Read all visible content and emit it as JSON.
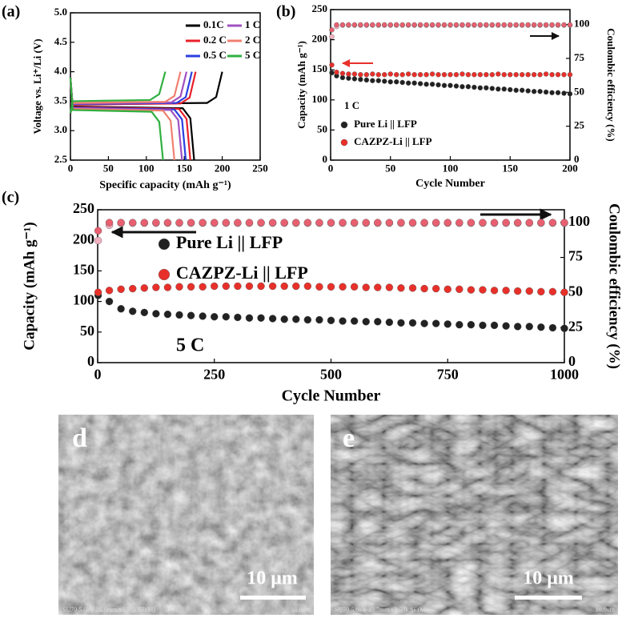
{
  "chart_data": [
    {
      "type": "line",
      "panel": "(a)",
      "xlabel": "Specific capacity (mAh g⁻¹)",
      "ylabel": "Voltage vs. Li⁺/Li (V)",
      "xlim": [
        0,
        250
      ],
      "xticks": [
        0,
        50,
        100,
        150,
        200,
        250
      ],
      "ylim": [
        2.5,
        5
      ],
      "yticks": [
        2.5,
        {
          "value": 3,
          "label": "3.0"
        },
        3.5,
        {
          "value": 4,
          "label": "4.0"
        },
        4.5,
        {
          "value": 5,
          "label": "5.0"
        }
      ],
      "legend": "upper right",
      "legend_columns": 2,
      "series": [
        {
          "name": "0.1C",
          "color": "#000000",
          "x": [
            0,
            3,
            180,
            192,
            200,
            null,
            0,
            3,
            148,
            158,
            163
          ],
          "values": [
            3.3,
            3.45,
            3.47,
            3.57,
            4.0,
            null,
            3.9,
            3.41,
            3.38,
            3.21,
            2.5
          ]
        },
        {
          "name": "0.2 C",
          "color": "#e8202a",
          "x": [
            0,
            3,
            145,
            157,
            165,
            null,
            0,
            3,
            143,
            153,
            158
          ],
          "values": [
            3.3,
            3.44,
            3.46,
            3.56,
            4.0,
            null,
            3.9,
            3.4,
            3.37,
            3.2,
            2.5
          ]
        },
        {
          "name": "0.5 C",
          "color": "#2a3fe0",
          "x": [
            0,
            3,
            140,
            152,
            160,
            null,
            0,
            3,
            137,
            147,
            152
          ],
          "values": [
            3.3,
            3.45,
            3.47,
            3.57,
            4.0,
            null,
            3.9,
            3.39,
            3.36,
            3.19,
            2.5
          ]
        },
        {
          "name": "1 C",
          "color": "#a050c0",
          "x": [
            0,
            3,
            133,
            145,
            153,
            null,
            0,
            3,
            132,
            142,
            147
          ],
          "values": [
            3.3,
            3.46,
            3.48,
            3.58,
            4.0,
            null,
            3.9,
            3.38,
            3.35,
            3.18,
            2.5
          ]
        },
        {
          "name": "2 C",
          "color": "#f08070",
          "x": [
            0,
            3,
            125,
            137,
            145,
            null,
            0,
            3,
            122,
            132,
            137
          ],
          "values": [
            3.3,
            3.47,
            3.49,
            3.59,
            4.0,
            null,
            3.9,
            3.37,
            3.34,
            3.17,
            2.5
          ]
        },
        {
          "name": "5 C",
          "color": "#30b040",
          "x": [
            0,
            3,
            105,
            117,
            125,
            null,
            0,
            3,
            107,
            117,
            122
          ],
          "values": [
            3.3,
            3.5,
            3.52,
            3.62,
            4.0,
            null,
            3.9,
            3.35,
            3.32,
            3.15,
            2.5
          ]
        }
      ]
    },
    {
      "type": "scatter",
      "panel": "(b)",
      "annotation": "1 C",
      "xlabel": "Cycle Number",
      "ylabel": "Capacity (mAh g⁻¹)",
      "y2label": "Coulombic efficiency (%)",
      "xlim": [
        0,
        200
      ],
      "xticks": [
        0,
        50,
        100,
        150,
        200
      ],
      "ylim": [
        0,
        250
      ],
      "yticks": [
        0,
        50,
        100,
        150,
        200,
        250
      ],
      "y2lim": [
        0,
        111
      ],
      "y2ticks": [
        0,
        25,
        50,
        75,
        100
      ],
      "legend": "lower left",
      "x": [
        1,
        5,
        10,
        15,
        20,
        25,
        30,
        35,
        40,
        45,
        50,
        55,
        60,
        65,
        70,
        75,
        80,
        85,
        90,
        95,
        100,
        105,
        110,
        115,
        120,
        125,
        130,
        135,
        140,
        145,
        150,
        155,
        160,
        165,
        170,
        175,
        180,
        185,
        190,
        195,
        200
      ],
      "series": [
        {
          "name": "Pure Li || LFP",
          "color": "#222222",
          "values": [
            145,
            140,
            137,
            136,
            135,
            134,
            133,
            132,
            132,
            131,
            130,
            130,
            129,
            128,
            128,
            127,
            126,
            126,
            125,
            124,
            124,
            123,
            122,
            122,
            121,
            120,
            120,
            119,
            118,
            118,
            117,
            116,
            116,
            115,
            114,
            114,
            113,
            112,
            112,
            111,
            110
          ]
        },
        {
          "name": "CAZPZ-Li || LFP",
          "color": "#e8302a",
          "values": [
            158,
            146,
            144,
            143,
            143,
            142,
            142,
            143,
            142,
            142,
            143,
            142,
            142,
            143,
            142,
            142,
            142,
            143,
            142,
            142,
            142,
            142,
            143,
            142,
            142,
            142,
            142,
            142,
            143,
            142,
            142,
            142,
            142,
            142,
            142,
            142,
            143,
            142,
            142,
            142,
            142
          ]
        },
        {
          "color": "#f2b0c0",
          "axis": "y2",
          "values": [
            91,
            98.5,
            99.5,
            99.5,
            99.5,
            99.5,
            99.5,
            99.5,
            99.5,
            99.5,
            99.5,
            99.5,
            99.5,
            99.5,
            99.5,
            99.5,
            99.5,
            99.5,
            99.5,
            99.5,
            99.5,
            99.5,
            99.5,
            99.5,
            99.5,
            99.5,
            99.5,
            99.5,
            99.5,
            99.5,
            99.5,
            99.5,
            99.5,
            99.5,
            99.5,
            99.5,
            99.5,
            99.5,
            99.5,
            99.5,
            99.5
          ]
        },
        {
          "color": "#e86070",
          "axis": "y2",
          "values": [
            96,
            99.8,
            99.8,
            99.8,
            99.8,
            99.8,
            99.8,
            99.8,
            99.8,
            99.8,
            99.8,
            99.8,
            99.8,
            99.8,
            99.8,
            99.8,
            99.8,
            99.8,
            99.8,
            99.8,
            99.8,
            99.8,
            99.8,
            99.8,
            99.8,
            99.8,
            99.8,
            99.8,
            99.8,
            99.8,
            99.8,
            99.8,
            99.8,
            99.8,
            99.8,
            99.8,
            99.8,
            99.8,
            99.8,
            99.8,
            99.8
          ]
        }
      ]
    },
    {
      "type": "scatter",
      "panel": "(c)",
      "annotation": "5 C",
      "xlabel": "Cycle Number",
      "ylabel": "Capacity (mAh g⁻¹)",
      "y2label": "Coulombic efficiency (%)",
      "xlim": [
        0,
        1000
      ],
      "xticks": [
        0,
        250,
        500,
        750,
        1000
      ],
      "ylim": [
        0,
        250
      ],
      "yticks": [
        0,
        50,
        100,
        150,
        200,
        250
      ],
      "y2lim": [
        0,
        109
      ],
      "y2ticks": [
        0,
        25,
        50,
        75,
        100
      ],
      "legend": "upper left",
      "x": [
        1,
        25,
        50,
        75,
        100,
        125,
        150,
        175,
        200,
        225,
        250,
        275,
        300,
        325,
        350,
        375,
        400,
        425,
        450,
        475,
        500,
        525,
        550,
        575,
        600,
        625,
        650,
        675,
        700,
        725,
        750,
        775,
        800,
        825,
        850,
        875,
        900,
        925,
        950,
        975,
        1000
      ],
      "series": [
        {
          "name": "Pure Li || LFP",
          "color": "#222222",
          "values": [
            110,
            100,
            88,
            84,
            82,
            80,
            79,
            78,
            77,
            76,
            75,
            75,
            74,
            73,
            73,
            72,
            71,
            71,
            70,
            70,
            69,
            68,
            68,
            67,
            67,
            66,
            65,
            65,
            64,
            64,
            63,
            62,
            62,
            61,
            61,
            60,
            59,
            59,
            58,
            57,
            56
          ]
        },
        {
          "name": "CAZPZ-Li || LFP",
          "color": "#e8302a",
          "values": [
            115,
            118,
            120,
            121,
            122,
            123,
            123,
            124,
            124,
            124,
            125,
            125,
            125,
            125,
            125,
            125,
            125,
            125,
            125,
            124,
            124,
            124,
            124,
            123,
            123,
            123,
            122,
            122,
            121,
            121,
            120,
            120,
            119,
            119,
            118,
            118,
            117,
            117,
            116,
            116,
            115
          ]
        },
        {
          "color": "#f2b0c0",
          "axis": "y2",
          "values": [
            87,
            98,
            99.5,
            99.5,
            99.5,
            99.5,
            99.5,
            99.5,
            99.5,
            99.5,
            99.5,
            99.5,
            99.5,
            99.5,
            99.5,
            99.5,
            99.5,
            99.5,
            99.5,
            99.5,
            99.5,
            99.5,
            99.5,
            99.5,
            99.5,
            99.5,
            99.5,
            99.5,
            99.5,
            99.5,
            99.5,
            99.5,
            99.5,
            99.5,
            99.5,
            99.5,
            99.5,
            99.5,
            99.5,
            99.5,
            99.5
          ]
        },
        {
          "color": "#e86070",
          "axis": "y2",
          "values": [
            94,
            99.8,
            99.8,
            99.8,
            99.8,
            99.8,
            99.8,
            99.8,
            99.8,
            99.8,
            99.8,
            99.8,
            99.8,
            99.8,
            99.8,
            99.8,
            99.8,
            99.8,
            99.8,
            99.8,
            99.8,
            99.8,
            99.8,
            99.8,
            99.8,
            99.8,
            99.8,
            99.8,
            99.8,
            99.8,
            99.8,
            99.8,
            99.8,
            99.8,
            99.8,
            99.8,
            99.8,
            99.8,
            99.8,
            99.8,
            99.8
          ]
        }
      ]
    }
  ],
  "images": [
    {
      "label": "d",
      "scale_bar": "10 μm",
      "info": "SU70 5.0kV 16.0mm x9.50k SE(M)",
      "info_scale": "10.0um"
    },
    {
      "label": "e",
      "scale_bar": "10 μm",
      "info": "SU70 5.0kV 15.7mm x3.50k SE(M)",
      "info_scale": "10.0um"
    }
  ]
}
